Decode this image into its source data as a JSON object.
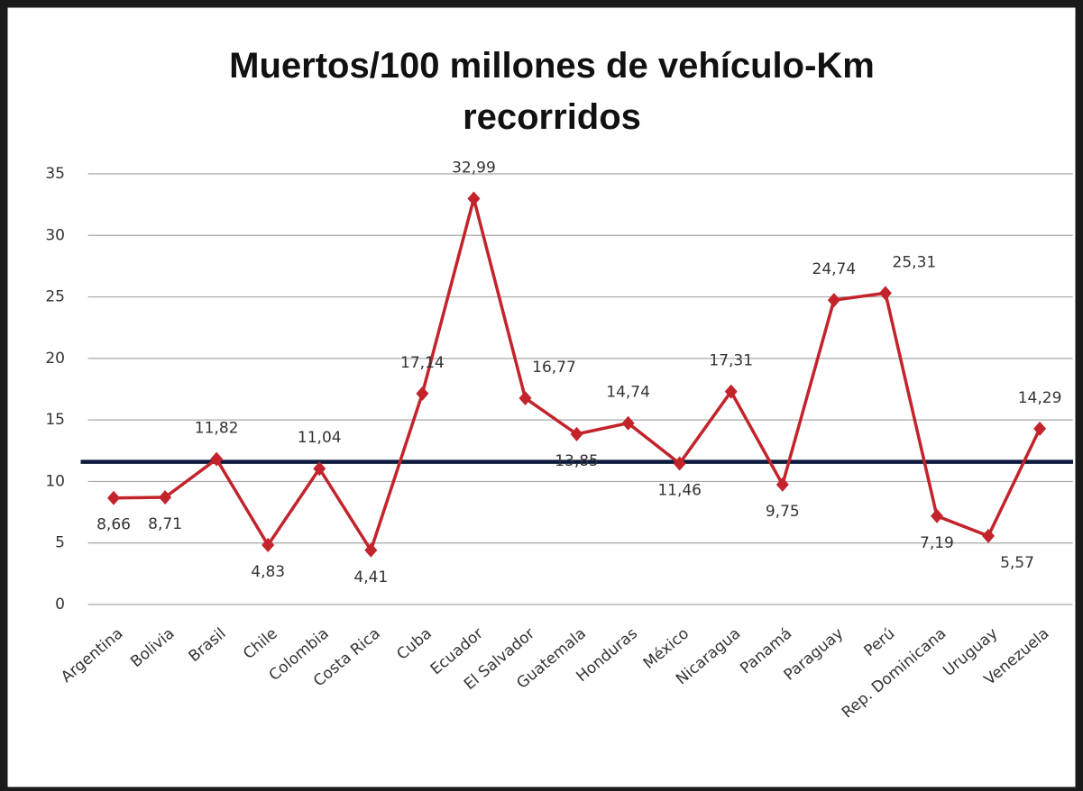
{
  "chart_data": {
    "type": "line",
    "title": "Muertos/100 millones de vehículo-Km recorridos",
    "categories": [
      "Argentina",
      "Bolivia",
      "Brasil",
      "Chile",
      "Colombia",
      "Costa Rica",
      "Cuba",
      "Ecuador",
      "El Salvador",
      "Guatemala",
      "Honduras",
      "México",
      "Nicaragua",
      "Panamá",
      "Paraguay",
      "Perú",
      "Rep. Dominicana",
      "Uruguay",
      "Venezuela"
    ],
    "series": [
      {
        "color": "#c3232b",
        "values": [
          8.66,
          8.71,
          11.82,
          4.83,
          11.04,
          4.41,
          17.14,
          32.99,
          16.77,
          13.85,
          14.74,
          11.46,
          17.31,
          9.75,
          24.74,
          25.31,
          7.19,
          5.57,
          14.29
        ],
        "value_labels": [
          "8,66",
          "8,71",
          "11,82",
          "4,83",
          "11,04",
          "4,41",
          "17,14",
          "32,99",
          "16,77",
          "13,85",
          "14,74",
          "11,46",
          "17,31",
          "9,75",
          "24,74",
          "25,31",
          "7,19",
          "5,57",
          "14,29"
        ]
      }
    ],
    "reference_line": {
      "value": 11.6,
      "color": "#0d1b3e"
    },
    "ylim": [
      0,
      35
    ],
    "yticks": [
      0,
      5,
      10,
      15,
      20,
      25,
      30,
      35
    ],
    "grid": true
  }
}
